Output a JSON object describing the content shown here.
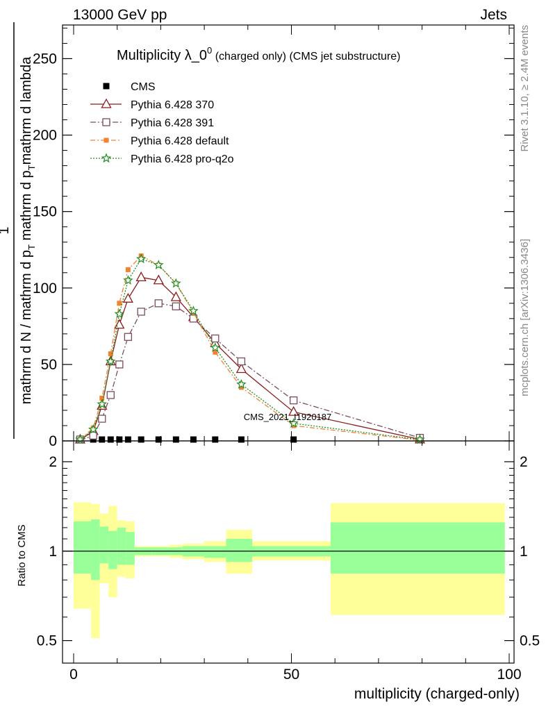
{
  "header": {
    "energy": "13000 GeV pp",
    "category": "Jets"
  },
  "side_labels": {
    "rivet": "Rivet 3.1.10, ≥ 2.4M events",
    "mcplots": "mcplots.cern.ch [arXiv:1306.3436]"
  },
  "watermark": "CMS_2021_I1920187",
  "chart_data": [
    {
      "type": "line",
      "title": "Multiplicity λ_0⁰ (charged only) (CMS jet substructure)",
      "title_main": "Multiplicity λ_0",
      "title_sup": "0",
      "title_rest": " (charged only) (CMS jet substructure)",
      "xlabel": "multiplicity (charged-only)",
      "ylabel": "1 / mathrm d N / mathrm d p_T mathrm d² N / mathrm d p_T mathrm d lambda",
      "xlim": [
        -1,
        100
      ],
      "ylim": [
        0,
        272
      ],
      "yticks": [
        0,
        50,
        100,
        150,
        200,
        250
      ],
      "legend_position": "top-left",
      "series": [
        {
          "name": "CMS",
          "color": "#000000",
          "marker": "filled-square",
          "x": [
            1.5,
            4.5,
            6.5,
            8.5,
            10.5,
            12.5,
            15.5,
            19.5,
            23.5,
            27.5,
            32.5,
            38.5,
            50.5
          ],
          "y": [
            0,
            0,
            0,
            0,
            0,
            0,
            0,
            0,
            0,
            0,
            0,
            0,
            0
          ]
        },
        {
          "name": "Pythia 6.428 370",
          "color": "#8b1a1a",
          "marker": "open-triangle",
          "dash": "",
          "x": [
            1.5,
            4.5,
            6.5,
            8.5,
            10.5,
            12.5,
            15.5,
            19.5,
            23.5,
            27.5,
            32.5,
            38.5,
            50.5,
            79.5
          ],
          "y": [
            0.5,
            6.5,
            23,
            52,
            76,
            93,
            107,
            105,
            94,
            81,
            64,
            47,
            19,
            1
          ]
        },
        {
          "name": "Pythia 6.428 391",
          "color": "#7a4b5e",
          "marker": "open-square",
          "dash": "8,3,2,3",
          "x": [
            1.5,
            4.5,
            6.5,
            8.5,
            10.5,
            12.5,
            15.5,
            19.5,
            23.5,
            27.5,
            32.5,
            38.5,
            50.5,
            79.5
          ],
          "y": [
            0.3,
            3.5,
            14.5,
            30,
            50,
            68,
            84.5,
            90,
            88,
            80,
            67,
            52,
            26.5,
            2
          ]
        },
        {
          "name": "Pythia 6.428 default",
          "color": "#f08232",
          "marker": "filled-square",
          "dash": "7,3,2,3",
          "x": [
            1.5,
            4.5,
            6.5,
            8.5,
            10.5,
            12.5,
            15.5,
            19.5,
            23.5,
            27.5,
            32.5,
            38.5,
            50.5,
            79.5
          ],
          "y": [
            0.8,
            8.5,
            28,
            57,
            90,
            112,
            121,
            115,
            103,
            84,
            58,
            35,
            10,
            0.5
          ]
        },
        {
          "name": "Pythia 6.428 pro-q2o",
          "color": "#1e8c1e",
          "marker": "open-star",
          "dash": "2,2",
          "x": [
            1.5,
            4.5,
            6.5,
            8.5,
            10.5,
            12.5,
            15.5,
            19.5,
            23.5,
            27.5,
            32.5,
            38.5,
            50.5,
            79.5
          ],
          "y": [
            0.7,
            7.5,
            24,
            52,
            83,
            105,
            119,
            115,
            103,
            85,
            61,
            37,
            11.5,
            0.8
          ]
        }
      ]
    },
    {
      "type": "area",
      "ylabel": "Ratio to CMS",
      "xlabel": "multiplicity (charged-only)",
      "xlim": [
        -1,
        100
      ],
      "ylim": [
        0.42,
        2.35
      ],
      "log_y": true,
      "yticks": [
        0.5,
        1,
        2
      ],
      "xticks": [
        0,
        50,
        100
      ],
      "bins": [
        {
          "lo": 0,
          "hi": 4,
          "stat_lo": 0.84,
          "stat_hi": 1.26,
          "tot_lo": 0.64,
          "tot_hi": 1.46
        },
        {
          "lo": 4,
          "hi": 6,
          "stat_lo": 0.8,
          "stat_hi": 1.28,
          "tot_lo": 0.51,
          "tot_hi": 1.44
        },
        {
          "lo": 6,
          "hi": 8,
          "stat_lo": 0.91,
          "stat_hi": 1.21,
          "tot_lo": 0.78,
          "tot_hi": 1.34
        },
        {
          "lo": 8,
          "hi": 10,
          "stat_lo": 0.87,
          "stat_hi": 1.17,
          "tot_lo": 0.7,
          "tot_hi": 1.42
        },
        {
          "lo": 10,
          "hi": 12,
          "stat_lo": 0.9,
          "stat_hi": 1.2,
          "tot_lo": 0.82,
          "tot_hi": 1.27
        },
        {
          "lo": 12,
          "hi": 14,
          "stat_lo": 0.9,
          "stat_hi": 1.16,
          "tot_lo": 0.81,
          "tot_hi": 1.26
        },
        {
          "lo": 14,
          "hi": 18,
          "stat_lo": 0.97,
          "stat_hi": 1.03,
          "tot_lo": 0.96,
          "tot_hi": 1.04
        },
        {
          "lo": 18,
          "hi": 22,
          "stat_lo": 0.97,
          "stat_hi": 1.03,
          "tot_lo": 0.96,
          "tot_hi": 1.04
        },
        {
          "lo": 22,
          "hi": 25,
          "stat_lo": 0.97,
          "stat_hi": 1.03,
          "tot_lo": 0.95,
          "tot_hi": 1.05
        },
        {
          "lo": 25,
          "hi": 30,
          "stat_lo": 0.96,
          "stat_hi": 1.04,
          "tot_lo": 0.94,
          "tot_hi": 1.06
        },
        {
          "lo": 30,
          "hi": 35,
          "stat_lo": 0.95,
          "stat_hi": 1.04,
          "tot_lo": 0.92,
          "tot_hi": 1.08
        },
        {
          "lo": 35,
          "hi": 41,
          "stat_lo": 0.92,
          "stat_hi": 1.1,
          "tot_lo": 0.84,
          "tot_hi": 1.18
        },
        {
          "lo": 41,
          "hi": 59,
          "stat_lo": 0.96,
          "stat_hi": 1.04,
          "tot_lo": 0.93,
          "tot_hi": 1.08
        },
        {
          "lo": 59,
          "hi": 99,
          "stat_lo": 0.84,
          "stat_hi": 1.25,
          "tot_lo": 0.61,
          "tot_hi": 1.45
        }
      ]
    }
  ],
  "band_colors": {
    "stat": "#99ff99",
    "total": "#ffff99"
  }
}
